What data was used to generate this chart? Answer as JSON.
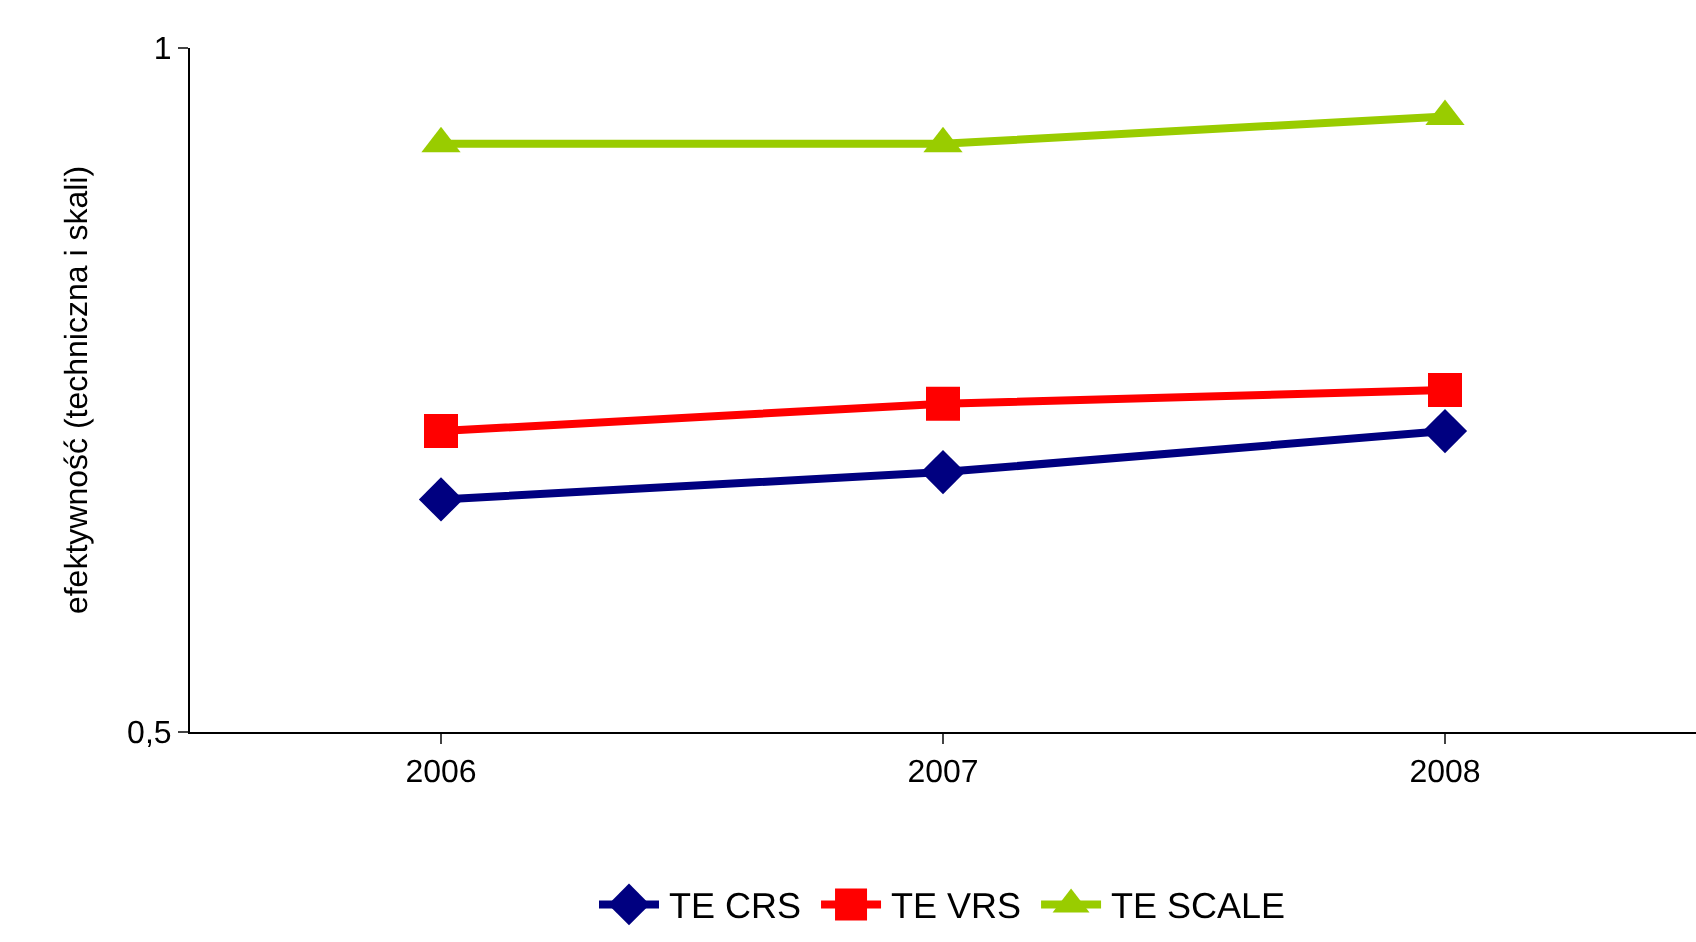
{
  "chart_data": {
    "type": "line",
    "ylabel": "efektywność (techniczna i skali)",
    "categories": [
      "2006",
      "2007",
      "2008"
    ],
    "series": [
      {
        "name": "TE CRS",
        "color": "#000080",
        "marker": "diamond",
        "values": [
          0.67,
          0.69,
          0.72
        ]
      },
      {
        "name": "TE VRS",
        "color": "#ff0000",
        "marker": "square",
        "values": [
          0.72,
          0.74,
          0.75
        ]
      },
      {
        "name": "TE SCALE",
        "color": "#99cc00",
        "marker": "triangle",
        "values": [
          0.93,
          0.93,
          0.95
        ]
      }
    ],
    "ylim": [
      0.5,
      1
    ],
    "yticks": [
      {
        "value": 0.5,
        "label": "0,5"
      },
      {
        "value": 1,
        "label": "1"
      }
    ],
    "legend": "bottom",
    "line_style": "solid"
  }
}
